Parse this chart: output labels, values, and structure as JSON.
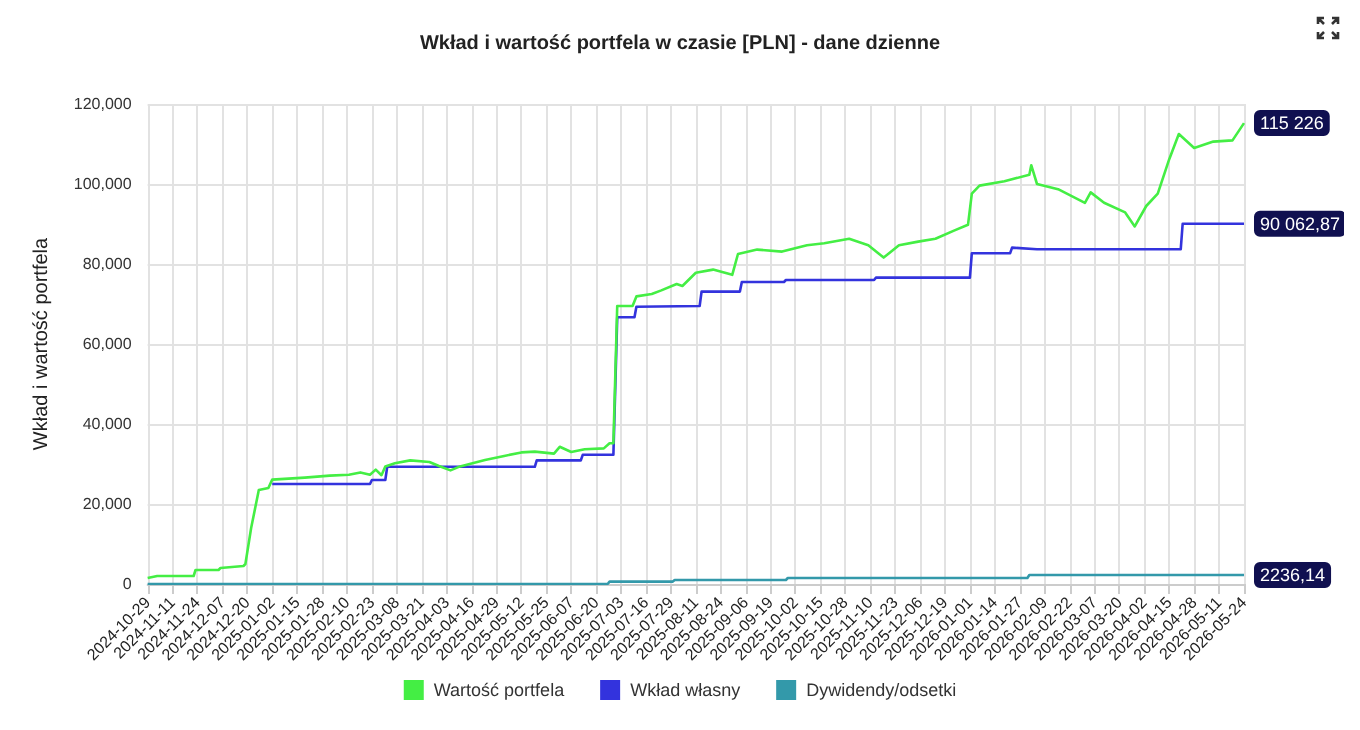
{
  "chart_data": {
    "type": "line",
    "title": "Wkład i wartość portfela w czasie [PLN] - dane dzienne",
    "ylabel": "Wkład i wartość portfela",
    "xlim": [
      "2024-10-29",
      "2026-05-24"
    ],
    "xticks": [
      "2024-10-29",
      "2024-11-11",
      "2024-11-24",
      "2024-12-07",
      "2024-12-20",
      "2025-01-02",
      "2025-01-15",
      "2025-01-28",
      "2025-02-10",
      "2025-02-23",
      "2025-03-08",
      "2025-03-21",
      "2025-04-03",
      "2025-04-16",
      "2025-04-29",
      "2025-05-12",
      "2025-05-25",
      "2025-06-07",
      "2025-06-20",
      "2025-07-03",
      "2025-07-16",
      "2025-07-29",
      "2025-08-11",
      "2025-08-24",
      "2025-09-06",
      "2025-09-19",
      "2025-10-02",
      "2025-10-15",
      "2025-10-28",
      "2025-11-10",
      "2025-11-23",
      "2025-12-06",
      "2025-12-19",
      "2026-01-01",
      "2026-01-14",
      "2026-01-27",
      "2026-02-09",
      "2026-02-22",
      "2026-03-07",
      "2026-03-20",
      "2026-04-02",
      "2026-04-15",
      "2026-04-28",
      "2026-05-11",
      "2026-05-24"
    ],
    "ylim": [
      0,
      120000
    ],
    "yticks": [
      0,
      {
        "value": 20000,
        "label": "20,000"
      },
      {
        "value": 40000,
        "label": "40,000"
      },
      {
        "value": 60000,
        "label": "60,000"
      },
      {
        "value": 80000,
        "label": "80,000"
      },
      {
        "value": 100000,
        "label": "100,000"
      },
      {
        "value": 120000,
        "label": "120,000"
      }
    ],
    "grid": true,
    "legend": "bottom",
    "marker": "none",
    "line_style": "solid",
    "series": [
      {
        "name": "Wartość portfela",
        "color": "#44ee44",
        "x": [
          "2024-10-29",
          "2024-11-03",
          "2024-11-22",
          "2024-11-23",
          "2024-12-05",
          "2024-12-06",
          "2024-12-18",
          "2024-12-19",
          "2024-12-22",
          "2024-12-26",
          "2024-12-31",
          "2025-01-02",
          "2025-01-19",
          "2025-02-01",
          "2025-02-11",
          "2025-02-17",
          "2025-02-22",
          "2025-02-25",
          "2025-02-28",
          "2025-03-02",
          "2025-03-07",
          "2025-03-15",
          "2025-03-25",
          "2025-03-30",
          "2025-04-05",
          "2025-04-10",
          "2025-04-23",
          "2025-05-03",
          "2025-05-12",
          "2025-05-19",
          "2025-05-29",
          "2025-06-01",
          "2025-06-07",
          "2025-06-14",
          "2025-06-24",
          "2025-06-27",
          "2025-06-29",
          "2025-07-01",
          "2025-07-09",
          "2025-07-11",
          "2025-07-19",
          "2025-07-24",
          "2025-08-01",
          "2025-08-04",
          "2025-08-11",
          "2025-08-20",
          "2025-08-30",
          "2025-09-02",
          "2025-09-12",
          "2025-09-25",
          "2025-10-08",
          "2025-10-17",
          "2025-10-30",
          "2025-11-09",
          "2025-11-17",
          "2025-11-25",
          "2025-12-05",
          "2025-12-14",
          "2025-12-24",
          "2025-12-31",
          "2026-01-02",
          "2026-01-06",
          "2026-01-19",
          "2026-02-01",
          "2026-02-02",
          "2026-02-05",
          "2026-02-16",
          "2026-03-02",
          "2026-03-05",
          "2026-03-12",
          "2026-03-23",
          "2026-03-28",
          "2026-04-03",
          "2026-04-09",
          "2026-04-15",
          "2026-04-20",
          "2026-04-28",
          "2026-05-08",
          "2026-05-18",
          "2026-05-24"
        ],
        "values": [
          1500,
          2000,
          2000,
          3500,
          3500,
          4000,
          4500,
          5000,
          14000,
          23500,
          24000,
          26100,
          26600,
          27100,
          27300,
          27900,
          27300,
          28600,
          27200,
          29400,
          30200,
          30900,
          30500,
          29500,
          28400,
          29400,
          31000,
          32000,
          32900,
          33100,
          32600,
          34300,
          33000,
          33700,
          33900,
          35200,
          35200,
          69500,
          69500,
          71900,
          72500,
          73400,
          75000,
          74500,
          77800,
          78600,
          77300,
          82500,
          83600,
          83100,
          84700,
          85200,
          86300,
          84700,
          81600,
          84700,
          85600,
          86300,
          88400,
          89800,
          97600,
          99600,
          100700,
          102300,
          104700,
          100000,
          98700,
          95300,
          97900,
          95300,
          92900,
          89400,
          94500,
          97600,
          106200,
          112500,
          109000,
          110600,
          110900,
          115226
        ],
        "value_labels": [
          null,
          null,
          null,
          null,
          null,
          null,
          null,
          null,
          null,
          null,
          null,
          null,
          null,
          null,
          null,
          null,
          null,
          null,
          null,
          null,
          null,
          null,
          null,
          null,
          null,
          null,
          null,
          null,
          null,
          null,
          null,
          null,
          null,
          null,
          null,
          null,
          null,
          null,
          null,
          null,
          null,
          null,
          null,
          null,
          null,
          null,
          null,
          null,
          null,
          null,
          null,
          null,
          null,
          null,
          null,
          null,
          null,
          null,
          null,
          null,
          null,
          null,
          null,
          null,
          null,
          null,
          null,
          null,
          null,
          null,
          null,
          null,
          null,
          null,
          null,
          null,
          null,
          null,
          null,
          "115 226"
        ]
      },
      {
        "name": "Wkład własny",
        "color": "#3333dd",
        "x": [
          "2025-01-02",
          "2025-02-22",
          "2025-02-23",
          "2025-03-02",
          "2025-03-03",
          "2025-05-19",
          "2025-05-20",
          "2025-06-12",
          "2025-06-13",
          "2025-06-29",
          "2025-07-01",
          "2025-07-10",
          "2025-07-11",
          "2025-08-13",
          "2025-08-14",
          "2025-09-03",
          "2025-09-04",
          "2025-09-26",
          "2025-09-27",
          "2025-11-12",
          "2025-11-13",
          "2026-01-01",
          "2026-01-02",
          "2026-01-22",
          "2026-01-23",
          "2026-02-05",
          "2026-04-21",
          "2026-04-22",
          "2026-05-24"
        ],
        "values": [
          25000,
          25000,
          26000,
          26000,
          29300,
          29300,
          30900,
          30900,
          32300,
          32300,
          66700,
          66700,
          69300,
          69500,
          73100,
          73100,
          75500,
          75500,
          76000,
          76000,
          76600,
          76600,
          82700,
          82700,
          84100,
          83700,
          83700,
          90062.87,
          90062.87
        ],
        "value_labels": [
          null,
          null,
          null,
          null,
          null,
          null,
          null,
          null,
          null,
          null,
          null,
          null,
          null,
          null,
          null,
          null,
          null,
          null,
          null,
          null,
          null,
          null,
          null,
          null,
          null,
          null,
          null,
          null,
          "90 062,87"
        ]
      },
      {
        "name": "Dywidendy/odsetki",
        "color": "#3399aa",
        "x": [
          "2024-10-29",
          "2025-06-26",
          "2025-06-27",
          "2025-07-30",
          "2025-07-31",
          "2025-09-27",
          "2025-09-28",
          "2026-01-31",
          "2026-02-01",
          "2026-05-24"
        ],
        "values": [
          0,
          0,
          600,
          600,
          1000,
          1000,
          1500,
          1500,
          2236.14,
          2236.14
        ],
        "value_labels": [
          null,
          null,
          null,
          null,
          null,
          null,
          null,
          null,
          null,
          "2236,14"
        ]
      }
    ]
  }
}
